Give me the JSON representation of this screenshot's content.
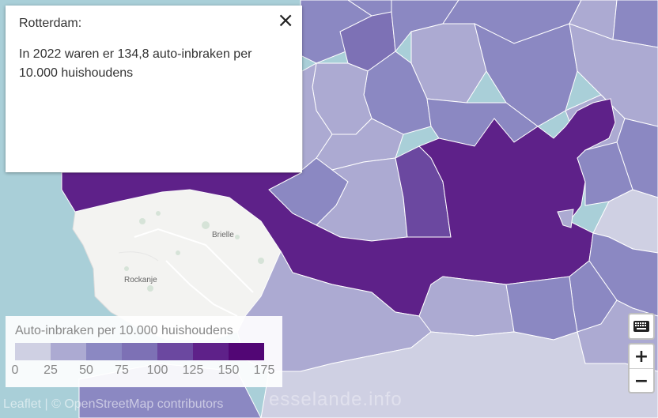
{
  "popup": {
    "title": "Rotterdam:",
    "body": "In 2022 waren er 134,8 auto-inbraken per 10.000 huishoudens",
    "close_symbol": "×"
  },
  "legend": {
    "title": "Auto-inbraken per 10.000 huishoudens",
    "ticks": [
      "0",
      "25",
      "50",
      "75",
      "100",
      "125",
      "150",
      "175"
    ],
    "colors": [
      "#cfd0e3",
      "#acaad2",
      "#8b88c2",
      "#7d71b5",
      "#6b48a0",
      "#5e2189",
      "#520675"
    ]
  },
  "map": {
    "places": [
      "Brielle",
      "Rockanje"
    ],
    "water_color": "#a9cfd8",
    "land_color": "#f2f2f2"
  },
  "controls": {
    "zoom_in": "+",
    "zoom_out": "−",
    "keyboard_icon": "keyboard-icon"
  },
  "attribution": "Leaflet | © OpenStreetMap contributors",
  "watermark": "esselande.info"
}
